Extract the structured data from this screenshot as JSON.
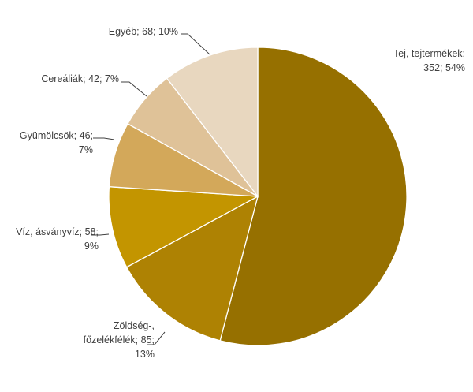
{
  "chart_data": {
    "type": "pie",
    "title": "",
    "slices": [
      {
        "label": "Tej, tejtermékek",
        "value": 352,
        "percent": "54%",
        "color": "#967000",
        "label_lines": [
          "Tej, tejtermékek;",
          "352; 54%"
        ]
      },
      {
        "label": "Zöldség-, főzelékfélék",
        "value": 85,
        "percent": "13%",
        "color": "#AE8203",
        "label_lines": [
          "Zöldség-,",
          "főzelékfélék; 85;",
          "13%"
        ]
      },
      {
        "label": "Víz, ásványvíz",
        "value": 58,
        "percent": "9%",
        "color": "#C39500",
        "label_lines": [
          "Víz, ásványvíz; 58;",
          "9%"
        ]
      },
      {
        "label": "Gyümölcsök",
        "value": 46,
        "percent": "7%",
        "color": "#D3A85A",
        "label_lines": [
          "Gyümölcsök; 46;",
          "7%"
        ]
      },
      {
        "label": "Cereáliák",
        "value": 42,
        "percent": "7%",
        "color": "#DFC298",
        "label_lines": [
          "Cereáliák; 42; 7%"
        ]
      },
      {
        "label": "Egyéb",
        "value": 68,
        "percent": "10%",
        "color": "#E8D7BF",
        "label_lines": [
          "Egyéb; 68; 10%"
        ]
      }
    ]
  }
}
